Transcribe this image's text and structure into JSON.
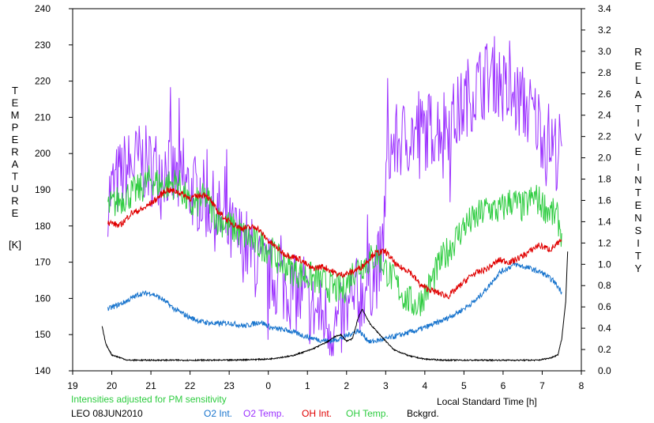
{
  "chart_data": {
    "type": "line",
    "xlabel": "Local Standard Time [h]",
    "x_ticks": [
      19,
      20,
      21,
      22,
      23,
      0,
      1,
      2,
      3,
      4,
      5,
      6,
      7,
      8
    ],
    "ylabel_left_letters": [
      "T",
      "E",
      "M",
      "P",
      "E",
      "R",
      "A",
      "T",
      "U",
      "R",
      "E"
    ],
    "ylabel_left_unit": "[K]",
    "ylim_left": [
      140,
      240
    ],
    "y_ticks_left": [
      140,
      150,
      160,
      170,
      180,
      190,
      200,
      210,
      220,
      230,
      240
    ],
    "ylabel_right_letters_1": [
      "R",
      "E",
      "L",
      "A",
      "T",
      "I",
      "V",
      "E"
    ],
    "ylabel_right_letters_2": [
      "I",
      "N",
      "T",
      "E",
      "N",
      "S",
      "I",
      "T",
      "Y"
    ],
    "ylim_right": [
      0.0,
      3.4
    ],
    "y_ticks_right": [
      "0.0",
      "0.2",
      "0.4",
      "0.6",
      "0.8",
      "1.0",
      "1.2",
      "1.4",
      "1.6",
      "1.8",
      "2.0",
      "2.2",
      "2.4",
      "2.6",
      "2.8",
      "3.0",
      "3.2",
      "3.4"
    ],
    "annotation": "Intensities adjusted for PM sensitivity",
    "station": "LEO 08JUN2010",
    "legend_placement": "bottom",
    "series": [
      {
        "name": "O2 Int.",
        "color": "#1874cd",
        "axis": "right",
        "x": [
          19.9,
          20.3,
          20.7,
          21.0,
          21.3,
          21.6,
          22.0,
          22.3,
          22.7,
          23.0,
          23.4,
          23.8,
          24.1,
          24.5,
          24.9,
          25.3,
          25.6,
          25.9,
          26.0,
          26.3,
          26.6,
          27.0,
          27.4,
          27.8,
          28.1,
          28.5,
          28.9,
          29.3,
          29.6,
          29.9,
          30.3,
          30.7,
          31.0,
          31.3,
          31.5
        ],
        "y": [
          0.58,
          0.64,
          0.72,
          0.73,
          0.67,
          0.58,
          0.5,
          0.46,
          0.44,
          0.45,
          0.42,
          0.46,
          0.4,
          0.38,
          0.33,
          0.29,
          0.28,
          0.31,
          0.33,
          0.38,
          0.27,
          0.3,
          0.34,
          0.38,
          0.42,
          0.48,
          0.56,
          0.66,
          0.78,
          0.92,
          1.0,
          0.96,
          0.92,
          0.84,
          0.74
        ]
      },
      {
        "name": "O2 Temp.",
        "color": "#9b30ff",
        "axis": "left",
        "x": [
          19.9,
          20.3,
          20.7,
          21.0,
          21.3,
          21.7,
          22.0,
          22.3,
          22.7,
          23.0,
          23.4,
          23.8,
          24.1,
          24.5,
          24.8,
          25.1,
          25.4,
          25.7,
          26.0,
          26.3,
          26.6,
          26.9,
          27.05,
          27.3,
          27.6,
          28.0,
          28.4,
          28.8,
          29.1,
          29.5,
          29.8,
          30.1,
          30.5,
          30.8,
          31.1,
          31.4,
          31.5
        ],
        "y": [
          188,
          195,
          198,
          196,
          197,
          192,
          190,
          188,
          183,
          178,
          175,
          168,
          166,
          163,
          160,
          157,
          155,
          152,
          155,
          160,
          165,
          170,
          200,
          203,
          205,
          206,
          208,
          210,
          216,
          220,
          222,
          216,
          214,
          210,
          205,
          200,
          202
        ]
      },
      {
        "name": "OH Int.",
        "color": "#e00000",
        "axis": "right",
        "x": [
          19.9,
          20.2,
          20.5,
          20.8,
          21.1,
          21.4,
          21.7,
          22.0,
          22.4,
          22.7,
          23.0,
          23.3,
          23.7,
          24.0,
          24.4,
          24.8,
          25.1,
          25.4,
          25.8,
          26.1,
          26.4,
          26.7,
          27.0,
          27.3,
          27.6,
          27.9,
          28.2,
          28.6,
          28.9,
          29.2,
          29.6,
          29.9,
          30.2,
          30.6,
          30.9,
          31.2,
          31.5
        ],
        "y": [
          1.4,
          1.36,
          1.48,
          1.52,
          1.6,
          1.7,
          1.68,
          1.62,
          1.66,
          1.5,
          1.4,
          1.34,
          1.35,
          1.22,
          1.1,
          1.05,
          0.96,
          0.98,
          0.9,
          0.92,
          0.98,
          1.1,
          1.12,
          0.98,
          0.94,
          0.8,
          0.75,
          0.7,
          0.8,
          0.9,
          0.96,
          1.04,
          1.02,
          1.1,
          1.18,
          1.14,
          1.22
        ]
      },
      {
        "name": "OH Temp.",
        "color": "#2ecc40",
        "axis": "left",
        "x": [
          19.9,
          20.3,
          20.7,
          21.0,
          21.3,
          21.7,
          22.0,
          22.4,
          22.7,
          23.0,
          23.3,
          23.7,
          24.0,
          24.3,
          24.6,
          25.0,
          25.3,
          25.6,
          25.9,
          26.2,
          26.5,
          26.8,
          27.0,
          27.2,
          27.5,
          27.8,
          28.1,
          28.4,
          28.7,
          29.0,
          29.3,
          29.6,
          29.9,
          30.2,
          30.5,
          30.8,
          31.1,
          31.4,
          31.5
        ],
        "y": [
          185,
          188,
          190,
          193,
          191,
          192,
          185,
          188,
          182,
          180,
          178,
          175,
          174,
          170,
          168,
          166,
          165,
          163,
          162,
          168,
          170,
          172,
          168,
          165,
          160,
          158,
          163,
          170,
          175,
          180,
          182,
          185,
          184,
          187,
          185,
          188,
          185,
          182,
          178
        ]
      },
      {
        "name": "Bckgrd.",
        "color": "#000000",
        "axis": "right",
        "x": [
          19.75,
          19.85,
          20.0,
          20.4,
          21.0,
          22.0,
          23.0,
          24.0,
          24.6,
          25.1,
          25.5,
          25.7,
          25.85,
          26.0,
          26.15,
          26.3,
          26.4,
          26.6,
          26.9,
          27.2,
          27.6,
          28.0,
          28.5,
          29.0,
          30.0,
          30.9,
          31.2,
          31.4,
          31.5,
          31.6,
          31.65
        ],
        "y": [
          0.42,
          0.25,
          0.15,
          0.1,
          0.1,
          0.1,
          0.1,
          0.11,
          0.14,
          0.2,
          0.27,
          0.32,
          0.34,
          0.28,
          0.3,
          0.5,
          0.58,
          0.44,
          0.32,
          0.2,
          0.14,
          0.11,
          0.1,
          0.1,
          0.1,
          0.1,
          0.12,
          0.15,
          0.3,
          0.65,
          1.12
        ]
      }
    ]
  }
}
